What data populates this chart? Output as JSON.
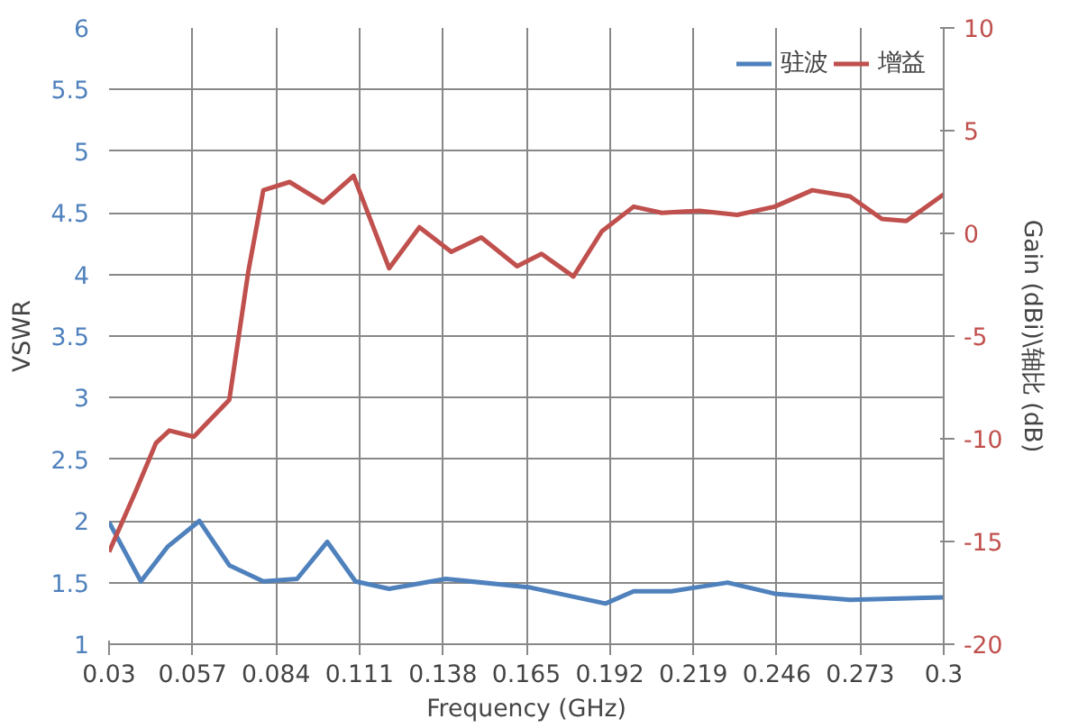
{
  "chart_data": {
    "type": "line",
    "xlabel": "Frequency (GHz)",
    "ylabel": "VSWR",
    "y2label": "Gain (dBi)\\轴比 (dB)",
    "xlim": [
      0.03,
      0.3
    ],
    "xticks": [
      0.03,
      0.057,
      0.084,
      0.111,
      0.138,
      0.165,
      0.192,
      0.219,
      0.246,
      0.273,
      0.3
    ],
    "ylim": [
      1,
      6
    ],
    "yticks": [
      1,
      1.5,
      2,
      2.5,
      3,
      3.5,
      4,
      4.5,
      5,
      5.5,
      6
    ],
    "y2lim": [
      -20,
      10
    ],
    "y2ticks": [
      -20,
      -15,
      -10,
      -5,
      0,
      5,
      10
    ],
    "grid": true,
    "legend": "top right",
    "marker": "none",
    "line_style": "solid",
    "series": [
      {
        "name": "驻波",
        "color": "#4f81bd",
        "x": [
          0.03,
          0.0403,
          0.0489,
          0.0592,
          0.0689,
          0.0799,
          0.0908,
          0.1006,
          0.1097,
          0.1206,
          0.1389,
          0.1663,
          0.1906,
          0.1997,
          0.2119,
          0.2301,
          0.2453,
          0.2697,
          0.3
        ],
        "values": [
          1.99,
          1.51,
          1.79,
          2.0,
          1.64,
          1.51,
          1.53,
          1.83,
          1.51,
          1.45,
          1.53,
          1.46,
          1.33,
          1.43,
          1.43,
          1.5,
          1.41,
          1.36,
          1.38
        ]
      },
      {
        "name": "增益",
        "color": "#c0504d",
        "axis": "y2",
        "x": [
          0.03,
          0.0385,
          0.0452,
          0.0495,
          0.0574,
          0.0689,
          0.075,
          0.0799,
          0.0884,
          0.0993,
          0.1091,
          0.1206,
          0.1304,
          0.1407,
          0.1504,
          0.162,
          0.1699,
          0.1802,
          0.1894,
          0.1997,
          0.2088,
          0.221,
          0.2332,
          0.2453,
          0.2575,
          0.2697,
          0.28,
          0.2879,
          0.3
        ],
        "values": [
          -15.5,
          -12.6,
          -10.2,
          -9.6,
          -9.9,
          -8.1,
          -1.9,
          2.1,
          2.5,
          1.5,
          2.8,
          -1.7,
          0.3,
          -0.9,
          -0.2,
          -1.6,
          -1.0,
          -2.1,
          0.1,
          1.3,
          1.0,
          1.1,
          0.9,
          1.3,
          2.1,
          1.8,
          0.7,
          0.6,
          1.9
        ]
      }
    ]
  }
}
